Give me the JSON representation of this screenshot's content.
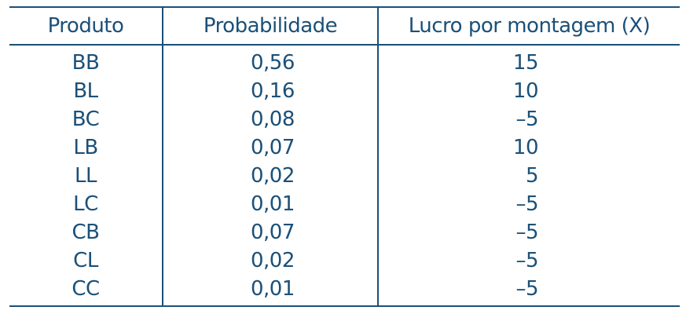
{
  "table": {
    "headers": [
      "Produto",
      "Probabilidade",
      "Lucro por montagem (X)"
    ],
    "rows": [
      {
        "produto": "BB",
        "probabilidade": "0,56",
        "lucro": "15"
      },
      {
        "produto": "BL",
        "probabilidade": "0,16",
        "lucro": "10"
      },
      {
        "produto": "BC",
        "probabilidade": "0,08",
        "lucro": "–5"
      },
      {
        "produto": "LB",
        "probabilidade": "0,07",
        "lucro": "10"
      },
      {
        "produto": "LL",
        "probabilidade": "0,02",
        "lucro": "5"
      },
      {
        "produto": "LC",
        "probabilidade": "0,01",
        "lucro": "–5"
      },
      {
        "produto": "CB",
        "probabilidade": "0,07",
        "lucro": "–5"
      },
      {
        "produto": "CL",
        "probabilidade": "0,02",
        "lucro": "–5"
      },
      {
        "produto": "CC",
        "probabilidade": "0,01",
        "lucro": "–5"
      }
    ],
    "colors": {
      "text": "#1b5078",
      "rule": "#1b5078"
    }
  }
}
